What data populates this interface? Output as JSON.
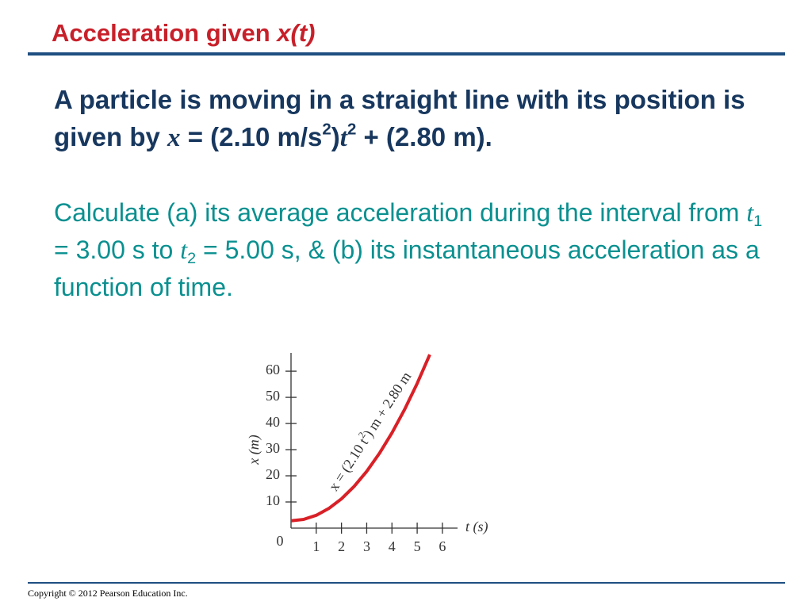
{
  "header": {
    "title": "Acceleration given ",
    "title_italic": "x(t)"
  },
  "problem": [
    "A particle is moving in a straight line with its position is given by ",
    "x",
    " = (2.10 m/s",
    "2",
    ")",
    "t",
    "2",
    " + (2.80 m)."
  ],
  "question": [
    "Calculate (a) its average acceleration during the interval from ",
    "t",
    "1",
    " = 3.00 s to ",
    "t",
    "2",
    " = 5.00 s, & (b) its instantaneous acceleration as a function of time."
  ],
  "footer": {
    "copyright": "Copyright © 2012 Pearson Education Inc."
  },
  "chart_data": {
    "type": "line",
    "x_label": "x (m)",
    "t_label": "t (s)",
    "origin_label": "0",
    "annotation": [
      "x = (2.10 t",
      "2",
      ") m + 2.80 m"
    ],
    "x": [
      0,
      0.5,
      1,
      1.5,
      2,
      2.5,
      3,
      3.5,
      4,
      4.5,
      5,
      5.5
    ],
    "series": [
      {
        "name": "x(t)",
        "color": "#d92027",
        "values": [
          2.8,
          3.33,
          4.9,
          7.53,
          11.2,
          15.93,
          21.7,
          28.53,
          36.4,
          45.33,
          55.3,
          66.33
        ]
      }
    ],
    "xlim": [
      0,
      6.6
    ],
    "ylim": [
      0,
      67
    ],
    "xticks": [
      1,
      2,
      3,
      4,
      5,
      6
    ],
    "yticks": [
      10,
      20,
      30,
      40,
      50,
      60
    ]
  }
}
